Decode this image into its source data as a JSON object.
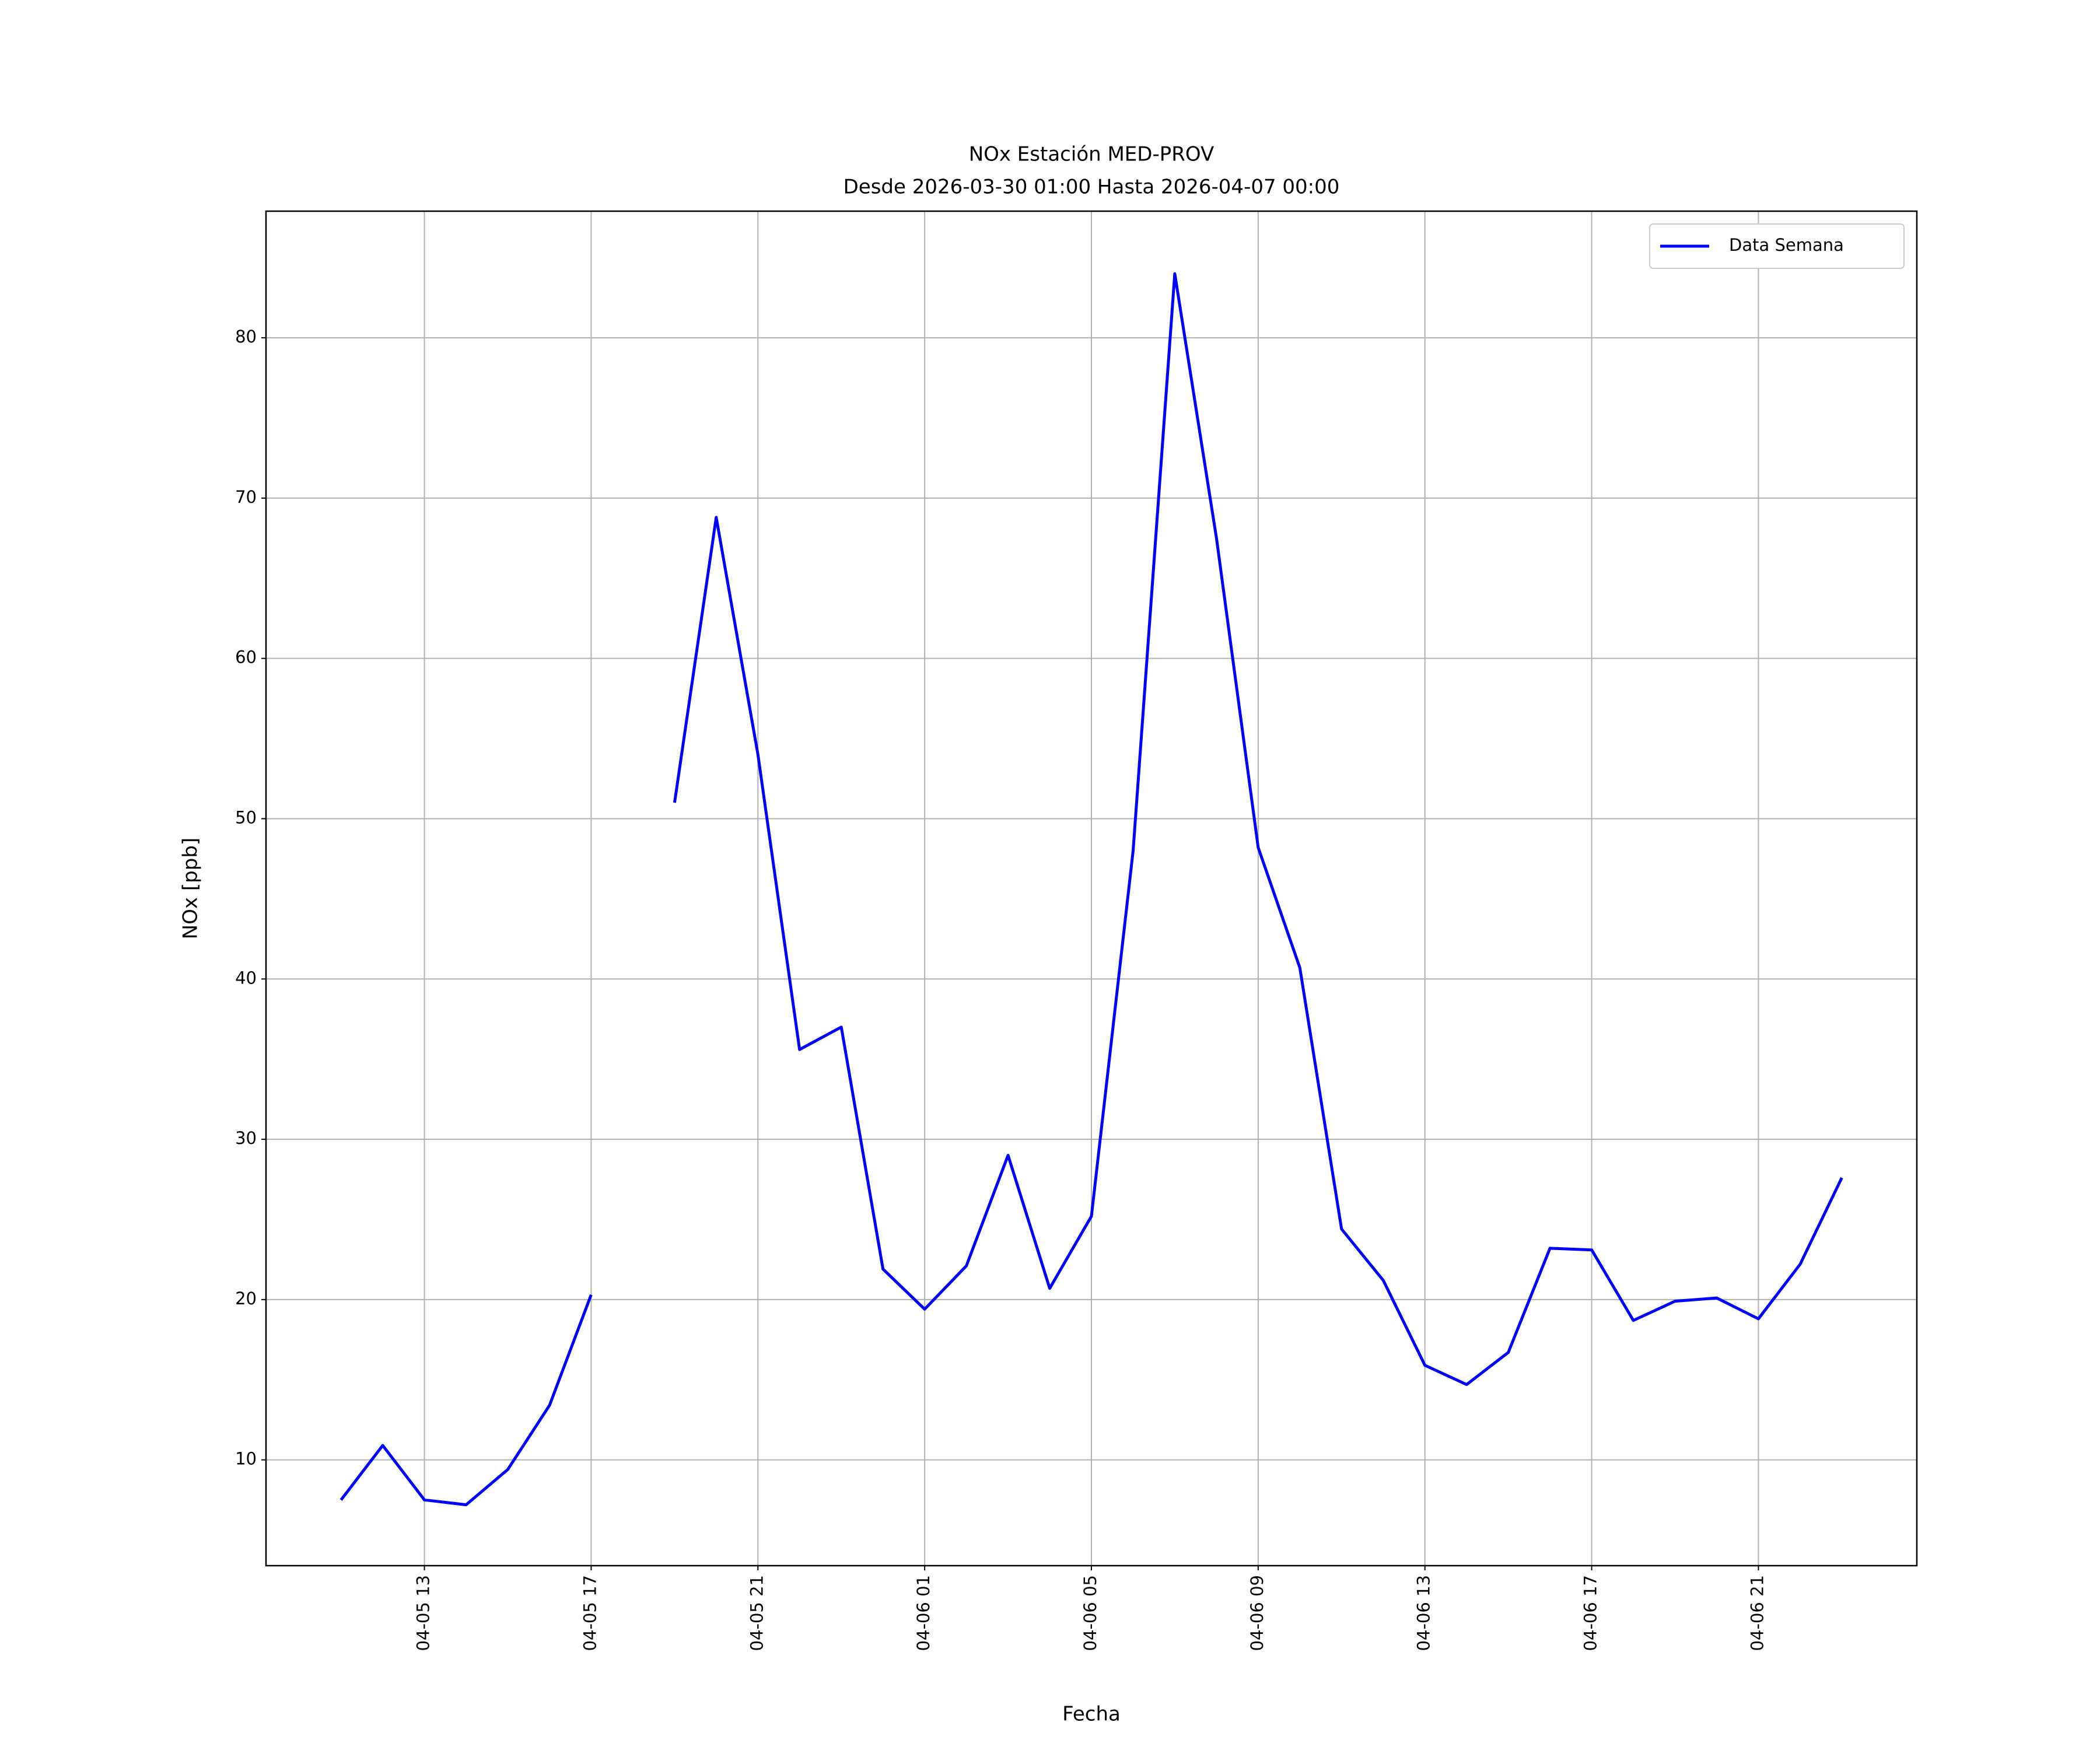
{
  "chart_data": {
    "type": "line",
    "title": "NOx Estación MED-PROV",
    "subtitle": "Desde 2026-03-30 01:00 Hasta 2026-04-07 00:00",
    "x_label": "Fecha",
    "y_label": "NOx [ppb]",
    "x": [
      "04-05 11",
      "04-05 12",
      "04-05 13",
      "04-05 14",
      "04-05 15",
      "04-05 16",
      "04-05 17",
      "04-05 18",
      "04-05 19",
      "04-05 20",
      "04-05 21",
      "04-05 22",
      "04-05 23",
      "04-06 00",
      "04-06 01",
      "04-06 02",
      "04-06 03",
      "04-06 04",
      "04-06 05",
      "04-06 06",
      "04-06 07",
      "04-06 08",
      "04-06 09",
      "04-06 10",
      "04-06 11",
      "04-06 12",
      "04-06 13",
      "04-06 14",
      "04-06 15",
      "04-06 16",
      "04-06 17",
      "04-06 18",
      "04-06 19",
      "04-06 20",
      "04-06 21",
      "04-06 22",
      "04-06 23"
    ],
    "series": [
      {
        "name": "Data Semana",
        "color": "#0000ff",
        "values": [
          7.5,
          10.9,
          7.5,
          7.2,
          9.4,
          13.4,
          20.3,
          null,
          51,
          68.8,
          54,
          35.6,
          37,
          21.9,
          19.4,
          22.1,
          29,
          20.7,
          25.2,
          48,
          84,
          67.5,
          48.2,
          40.7,
          24.4,
          21.2,
          15.9,
          14.7,
          16.7,
          23.2,
          23.1,
          18.7,
          19.9,
          20.1,
          18.8,
          22.2,
          27.6
        ]
      }
    ],
    "xticks": [
      "04-05 13",
      "04-05 17",
      "04-05 21",
      "04-06 01",
      "04-06 05",
      "04-06 09",
      "04-06 13",
      "04-06 17",
      "04-06 21"
    ],
    "ylim": [
      3.4,
      87.9
    ],
    "yticks": [
      10,
      20,
      30,
      40,
      50,
      60,
      70,
      80
    ],
    "grid": true,
    "legend": "upper right"
  }
}
